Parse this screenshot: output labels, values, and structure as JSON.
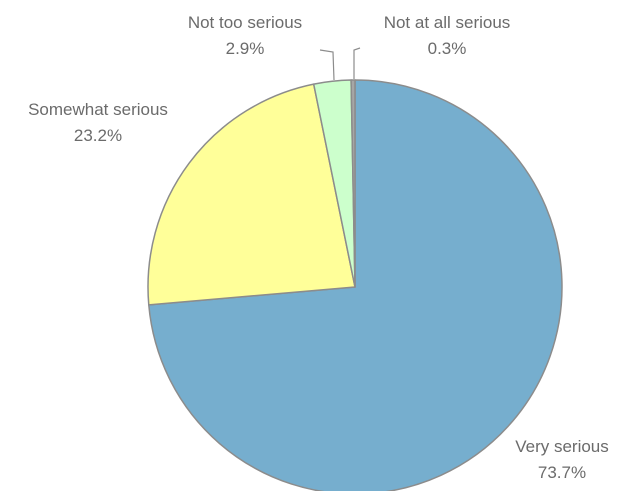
{
  "chart_data": {
    "type": "pie",
    "title": "",
    "categories": [
      "Very serious",
      "Somewhat serious",
      "Not too serious",
      "Not at all serious"
    ],
    "values": [
      73.7,
      23.2,
      2.9,
      0.3
    ],
    "value_labels": [
      "73.7%",
      "23.2%",
      "2.9%",
      "0.3%"
    ],
    "colors": [
      "#76AECE",
      "#FFFF99",
      "#CCFFCC",
      "#A6A6A6"
    ],
    "start_angle": "12 o'clock",
    "direction": "clockwise",
    "legend": "none",
    "data_labels": "category name and percentage"
  }
}
